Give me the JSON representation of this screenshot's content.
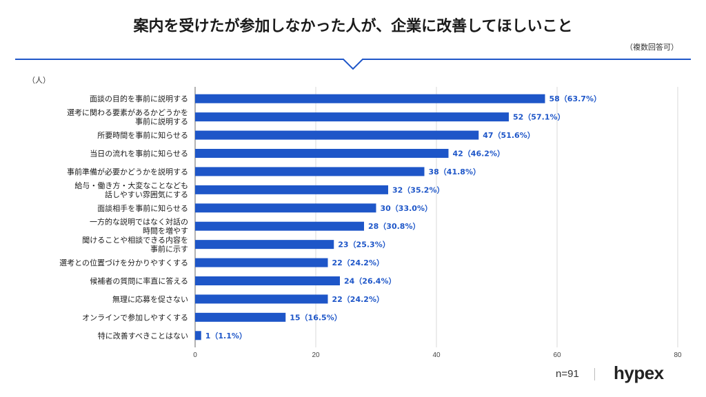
{
  "header": {
    "title": "案内を受けたが参加しなかった人が、企業に改善してほしいこと",
    "note": "（複数回答可）",
    "unit": "（人）"
  },
  "colors": {
    "bar": "#1e56c8",
    "label": "#1e56c8",
    "rule": "#1e56c8",
    "grid": "#d9d9d9"
  },
  "chart_data": {
    "type": "bar",
    "orientation": "horizontal",
    "categories": [
      [
        "面談の目的を事前に説明する"
      ],
      [
        "選考に関わる要素があるかどうかを",
        "事前に説明する"
      ],
      [
        "所要時間を事前に知らせる"
      ],
      [
        "当日の流れを事前に知らせる"
      ],
      [
        "事前準備が必要かどうかを説明する"
      ],
      [
        "給与・働き方・大変なことなども",
        "話しやすい雰囲気にする"
      ],
      [
        "面談相手を事前に知らせる"
      ],
      [
        "一方的な説明ではなく対話の",
        "時間を増やす"
      ],
      [
        "聞けることや相談できる内容を",
        "事前に示す"
      ],
      [
        "選考との位置づけを分かりやすくする"
      ],
      [
        "候補者の質問に率直に答える"
      ],
      [
        "無理に応募を促さない"
      ],
      [
        "オンラインで参加しやすくする"
      ],
      [
        "特に改善すべきことはない"
      ]
    ],
    "values": [
      58,
      52,
      47,
      42,
      38,
      32,
      30,
      28,
      23,
      22,
      24,
      22,
      15,
      1
    ],
    "value_labels": [
      "58（63.7%）",
      "52（57.1%）",
      "47（51.6%）",
      "42（46.2%）",
      "38（41.8%）",
      "32（35.2%）",
      "30（33.0%）",
      "28（30.8%）",
      "23（25.3%）",
      "22（24.2%）",
      "24（26.4%）",
      "22（24.2%）",
      "15（16.5%）",
      "1（1.1%）"
    ],
    "xlim": [
      0,
      80
    ],
    "xticks": [
      0,
      20,
      40,
      60,
      80
    ],
    "grid": true
  },
  "footer": {
    "sample": "n=91",
    "logo": "hypex"
  }
}
